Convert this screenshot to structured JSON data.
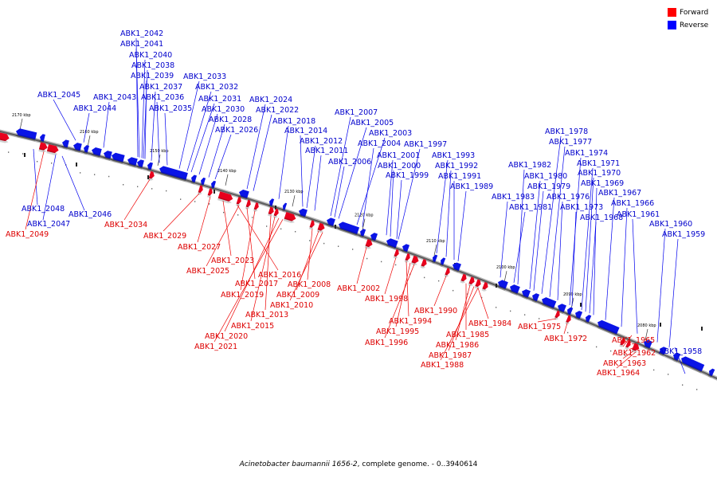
{
  "legend": [
    {
      "label": "Forward",
      "color": "#ff0000"
    },
    {
      "label": "Reverse",
      "color": "#0000ff"
    }
  ],
  "caption": {
    "organism": "Acinetobacter baumannii 1656-2",
    "suffix": ", complete genome. - 0..3940614"
  },
  "colors": {
    "forward": "#e8001c",
    "reverse": "#0a14e6",
    "label_forward": "#dd0000",
    "label_reverse": "#0000cc",
    "backbone": "#808080"
  },
  "ticks": [
    "2170 kbp",
    "2160 kbp",
    "2150 kbp",
    "2140 kbp",
    "2130 kbp",
    "2120 kbp",
    "2110 kbp",
    "2100 kbp",
    "2090 kbp",
    "2080 kbp"
  ],
  "genes_reverse": [
    "ABK1_2042",
    "ABK1_2041",
    "ABK1_2040",
    "ABK1_2038",
    "ABK1_2039",
    "ABK1_2033",
    "ABK1_2037",
    "ABK1_2032",
    "ABK1_2045",
    "ABK1_2043",
    "ABK1_2036",
    "ABK1_2031",
    "ABK1_2024",
    "ABK1_2044",
    "ABK1_2035",
    "ABK1_2030",
    "ABK1_2022",
    "ABK1_2007",
    "ABK1_2028",
    "ABK1_2018",
    "ABK1_2005",
    "ABK1_2026",
    "ABK1_2014",
    "ABK1_2003",
    "ABK1_1978",
    "ABK1_2012",
    "ABK1_2004",
    "ABK1_1997",
    "ABK1_1977",
    "ABK1_2011",
    "ABK1_1993",
    "ABK1_1974",
    "ABK1_2006",
    "ABK1_2001",
    "ABK1_1992",
    "ABK1_1982",
    "ABK1_1971",
    "ABK1_2000",
    "ABK1_1980",
    "ABK1_1970",
    "ABK1_1999",
    "ABK1_1991",
    "ABK1_1979",
    "ABK1_1969",
    "ABK1_1989",
    "ABK1_1983",
    "ABK1_1976",
    "ABK1_1967",
    "ABK1_1981",
    "ABK1_1973",
    "ABK1_1966",
    "ABK1_1968",
    "ABK1_1961",
    "ABK1_1960",
    "ABK1_1959",
    "ABK1_2048",
    "ABK1_2047",
    "ABK1_2046",
    "ABK1_1958"
  ],
  "genes_forward": [
    "ABK1_2049",
    "ABK1_2034",
    "ABK1_2029",
    "ABK1_2027",
    "ABK1_2023",
    "ABK1_2016",
    "ABK1_2025",
    "ABK1_2017",
    "ABK1_2008",
    "ABK1_2019",
    "ABK1_2009",
    "ABK1_2010",
    "ABK1_2002",
    "ABK1_2013",
    "ABK1_1998",
    "ABK1_2015",
    "ABK1_1990",
    "ABK1_2020",
    "ABK1_1994",
    "ABK1_2021",
    "ABK1_1984",
    "ABK1_1995",
    "ABK1_1985",
    "ABK1_1975",
    "ABK1_1996",
    "ABK1_1986",
    "ABK1_1972",
    "ABK1_1987",
    "ABK1_1965",
    "ABK1_1988",
    "ABK1_1962",
    "ABK1_1963",
    "ABK1_1964"
  ]
}
